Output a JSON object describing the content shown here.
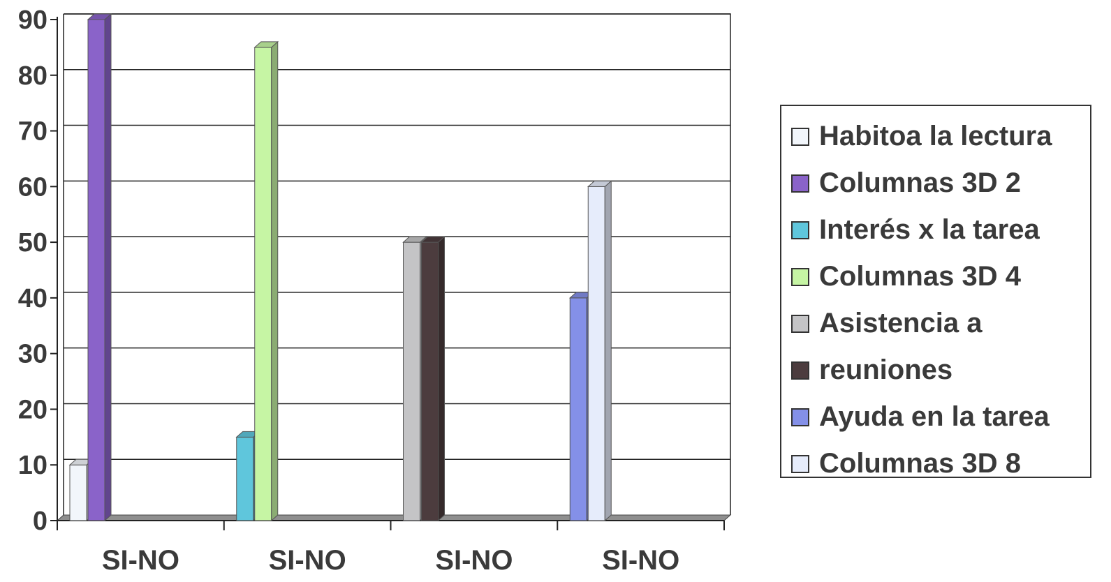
{
  "chart_data": {
    "type": "bar",
    "categories": [
      "SI-NO",
      "SI-NO",
      "SI-NO",
      "SI-NO"
    ],
    "ylim": [
      0,
      90
    ],
    "yticks": [
      0,
      10,
      20,
      30,
      40,
      50,
      60,
      70,
      80,
      90
    ],
    "grid": true,
    "legend_position": "right",
    "series": [
      {
        "name": "Habitoa la lectura",
        "color": "#f2f6fb",
        "values": [
          10,
          0,
          0,
          0
        ]
      },
      {
        "name": "Columnas 3D 2",
        "color": "#8a63c9",
        "values": [
          90,
          0,
          0,
          0
        ]
      },
      {
        "name": "Interés x la tarea",
        "color": "#5fc6dc",
        "values": [
          0,
          15,
          0,
          0
        ]
      },
      {
        "name": "Columnas 3D 4",
        "color": "#c6f5a4",
        "values": [
          0,
          85,
          0,
          0
        ]
      },
      {
        "name": "Asistencia a",
        "color": "#c4c4c6",
        "values": [
          0,
          0,
          50,
          0
        ]
      },
      {
        "name": "reuniones",
        "color": "#4c3c3e",
        "values": [
          0,
          0,
          50,
          0
        ]
      },
      {
        "name": "Ayuda en la tarea",
        "color": "#8490e8",
        "values": [
          0,
          0,
          0,
          40
        ]
      },
      {
        "name": "Columnas 3D 8",
        "color": "#e6ecfb",
        "values": [
          0,
          0,
          0,
          60
        ]
      }
    ]
  }
}
